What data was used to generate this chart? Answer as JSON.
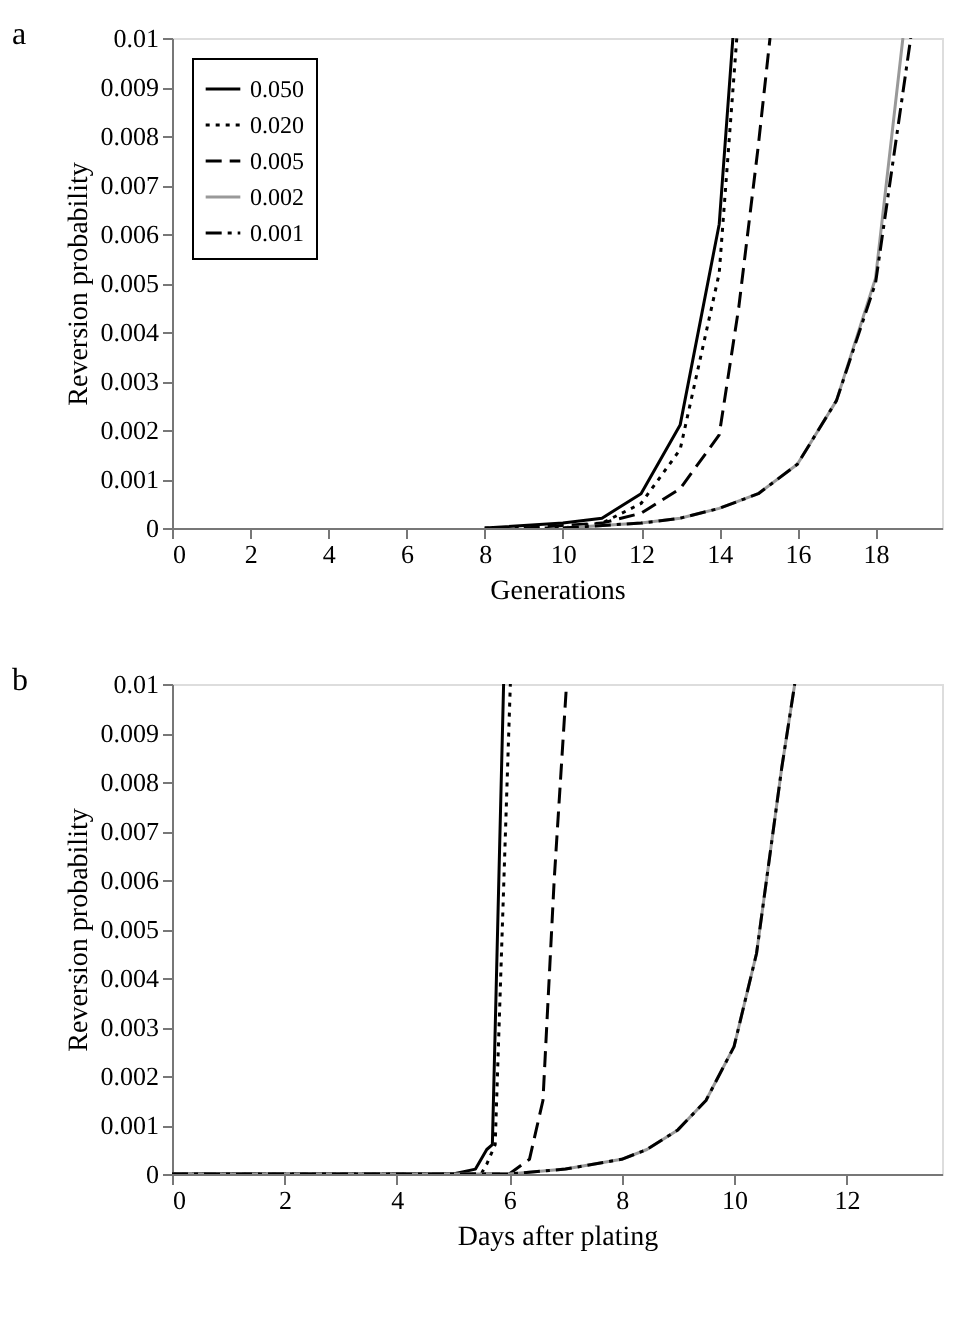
{
  "chart_data": [
    {
      "type": "line",
      "title": "a",
      "xlabel": "Generations",
      "ylabel": "Reversion probability",
      "xlim": [
        0,
        19.7
      ],
      "xticks": [
        0,
        2,
        4,
        6,
        8,
        10,
        12,
        14,
        16,
        18
      ],
      "ylim": [
        0,
        0.01
      ],
      "yticks": [
        0,
        0.001,
        0.002,
        0.003,
        0.004,
        0.005,
        0.006,
        0.007,
        0.008,
        0.009,
        0.01
      ],
      "legend": "top left",
      "grid": false,
      "marker": "none",
      "series": [
        {
          "name": "0.050",
          "color": "#000000",
          "line_style": "solid",
          "x": [
            8,
            10,
            11,
            12,
            13,
            14,
            14.35
          ],
          "values": [
            0,
            0.0001,
            0.0002,
            0.0007,
            0.0021,
            0.0062,
            0.01
          ]
        },
        {
          "name": "0.020",
          "color": "#000000",
          "line_style": "dotted",
          "x": [
            8,
            10,
            11,
            12,
            13,
            14,
            14.45
          ],
          "values": [
            0,
            0,
            0.0001,
            0.0005,
            0.0016,
            0.0052,
            0.01
          ]
        },
        {
          "name": "0.005",
          "color": "#000000",
          "line_style": "dashed",
          "x": [
            9,
            11,
            12,
            13,
            14,
            14.5,
            15,
            15.3
          ],
          "values": [
            0,
            0.0001,
            0.0003,
            0.0008,
            0.0019,
            0.0045,
            0.0078,
            0.01
          ]
        },
        {
          "name": "0.002",
          "color": "#999999",
          "line_style": "solid",
          "x": [
            10,
            12,
            13,
            14,
            15,
            16,
            17,
            18,
            18.7
          ],
          "values": [
            0,
            0.0001,
            0.0002,
            0.0004,
            0.0007,
            0.0013,
            0.0026,
            0.0051,
            0.01
          ]
        },
        {
          "name": "0.001",
          "color": "#000000",
          "line_style": "dashdot",
          "x": [
            10,
            12,
            13,
            14,
            15,
            16,
            17,
            18,
            18.9
          ],
          "values": [
            0,
            0.0001,
            0.0002,
            0.0004,
            0.0007,
            0.0013,
            0.0026,
            0.005,
            0.01
          ]
        }
      ]
    },
    {
      "type": "line",
      "title": "b",
      "xlabel": "Days after plating",
      "ylabel": "Reversion probability",
      "xlim": [
        0,
        13.7
      ],
      "xticks": [
        0,
        2,
        4,
        6,
        8,
        10,
        12
      ],
      "ylim": [
        0,
        0.01
      ],
      "yticks": [
        0,
        0.001,
        0.002,
        0.003,
        0.004,
        0.005,
        0.006,
        0.007,
        0.008,
        0.009,
        0.01
      ],
      "legend": "top left",
      "grid": false,
      "marker": "none",
      "series": [
        {
          "name": "0.050",
          "color": "#000000",
          "line_style": "solid",
          "x": [
            0,
            5,
            5.4,
            5.6,
            5.7,
            5.9
          ],
          "values": [
            0,
            0,
            0.0001,
            0.0005,
            0.0006,
            0.01
          ]
        },
        {
          "name": "0.020",
          "color": "#000000",
          "line_style": "dotted",
          "x": [
            0,
            5.5,
            5.6,
            5.75,
            6.02
          ],
          "values": [
            0,
            0,
            0.0002,
            0.0006,
            0.01
          ]
        },
        {
          "name": "0.005",
          "color": "#000000",
          "line_style": "dashed",
          "x": [
            0,
            6,
            6.36,
            6.6,
            6.8,
            7.02
          ],
          "values": [
            0,
            0,
            0.0003,
            0.0015,
            0.006,
            0.01
          ]
        },
        {
          "name": "0.002",
          "color": "#999999",
          "line_style": "solid",
          "x": [
            0,
            6,
            7,
            8,
            8.45,
            9,
            9.5,
            10,
            10.4,
            10.85,
            11.08
          ],
          "values": [
            0,
            0,
            0.0001,
            0.0003,
            0.0005,
            0.0009,
            0.0015,
            0.0026,
            0.0045,
            0.0083,
            0.01
          ]
        },
        {
          "name": "0.001",
          "color": "#000000",
          "line_style": "dashdot",
          "x": [
            0,
            6,
            7,
            8,
            8.45,
            9,
            9.5,
            10,
            10.4,
            10.85,
            11.08
          ],
          "values": [
            0,
            0,
            0.0001,
            0.0003,
            0.0005,
            0.0009,
            0.0015,
            0.0026,
            0.0045,
            0.0083,
            0.01
          ]
        }
      ]
    }
  ]
}
